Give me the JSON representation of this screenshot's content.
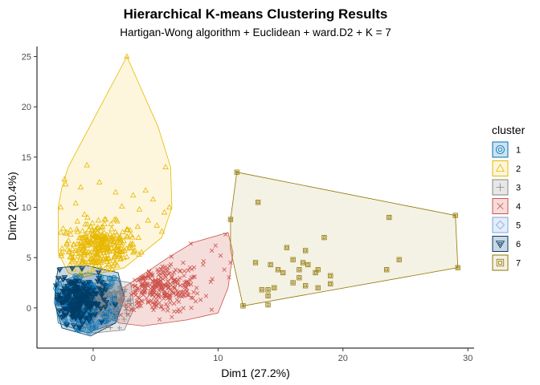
{
  "chart_data": {
    "type": "scatter",
    "title": "Hierarchical K-means Clustering Results",
    "subtitle": "Hartigan-Wong algorithm + Euclidean + ward.D2 + K = 7",
    "xlabel": "Dim1 (27.2%)",
    "ylabel": "Dim2 (20.4%)",
    "xlim": [
      -4.5,
      30.5
    ],
    "ylim": [
      -4.0,
      26.0
    ],
    "xticks": [
      0,
      10,
      20,
      30
    ],
    "yticks": [
      0,
      5,
      10,
      15,
      20,
      25
    ],
    "grid": false,
    "legend": {
      "title": "cluster",
      "placement": "right",
      "entries": [
        "1",
        "2",
        "3",
        "4",
        "5",
        "6",
        "7"
      ]
    },
    "series": [
      {
        "name": "1",
        "marker": "circle-in-circle",
        "color": "#0072B5",
        "fill": "#0072B5",
        "hull": [
          [
            -3.0,
            2.5
          ],
          [
            -0.5,
            3.5
          ],
          [
            2.0,
            3.0
          ],
          [
            2.5,
            1.0
          ],
          [
            1.8,
            -1.5
          ],
          [
            -0.5,
            -2.5
          ],
          [
            -2.8,
            -1.5
          ],
          [
            -3.0,
            0.5
          ]
        ],
        "center": [
          -0.5,
          0.5
        ],
        "spread": [
          1.3,
          1.2
        ],
        "count": 260
      },
      {
        "name": "2",
        "marker": "triangle",
        "color": "#E7B800",
        "fill": "#F5D34E",
        "hull": [
          [
            2.7,
            25.0
          ],
          [
            5.2,
            18.0
          ],
          [
            6.2,
            14.0
          ],
          [
            6.3,
            10.0
          ],
          [
            5.5,
            7.0
          ],
          [
            3.5,
            5.0
          ],
          [
            2.5,
            4.0
          ],
          [
            -1.0,
            3.0
          ],
          [
            -2.0,
            3.5
          ],
          [
            -2.8,
            5.5
          ],
          [
            -2.8,
            10.0
          ],
          [
            -2.5,
            12.0
          ],
          [
            -2.0,
            14.0
          ]
        ],
        "points": [
          [
            2.7,
            25.0
          ],
          [
            -0.5,
            14.2
          ],
          [
            -2.3,
            12.8
          ],
          [
            -2.2,
            12.3
          ],
          [
            5.8,
            14.0
          ],
          [
            -1.0,
            12.0
          ],
          [
            0.5,
            12.5
          ],
          [
            1.8,
            11.5
          ],
          [
            3.2,
            11.2
          ],
          [
            4.2,
            11.7
          ],
          [
            4.8,
            10.8
          ],
          [
            6.1,
            10.0
          ],
          [
            5.7,
            9.5
          ],
          [
            -2.6,
            10.0
          ],
          [
            -1.4,
            10.4
          ],
          [
            2.3,
            10.1
          ],
          [
            3.7,
            9.8
          ],
          [
            -0.7,
            9.3
          ],
          [
            1.0,
            8.8
          ],
          [
            4.4,
            8.7
          ],
          [
            5.1,
            8.2
          ],
          [
            5.5,
            7.6
          ],
          [
            -2.4,
            7.9
          ]
        ],
        "center": [
          0.5,
          6.0
        ],
        "spread": [
          1.5,
          1.2
        ],
        "count": 320
      },
      {
        "name": "3",
        "marker": "plus",
        "color": "#868686",
        "fill": "#868686",
        "hull": [
          [
            -1.0,
            2.2
          ],
          [
            1.5,
            2.8
          ],
          [
            3.0,
            2.5
          ],
          [
            3.3,
            0.0
          ],
          [
            2.5,
            -2.2
          ],
          [
            0.0,
            -2.5
          ],
          [
            -1.5,
            -1.0
          ]
        ],
        "center": [
          1.0,
          0.5
        ],
        "spread": [
          1.0,
          1.0
        ],
        "count": 150
      },
      {
        "name": "4",
        "marker": "cross",
        "color": "#CD534C",
        "fill": "#CD534C",
        "hull": [
          [
            1.8,
            1.5
          ],
          [
            6.0,
            5.0
          ],
          [
            8.0,
            6.5
          ],
          [
            10.8,
            7.5
          ],
          [
            11.2,
            5.5
          ],
          [
            10.8,
            2.0
          ],
          [
            10.0,
            -0.5
          ],
          [
            7.5,
            -1.2
          ],
          [
            4.0,
            -1.8
          ],
          [
            2.0,
            -1.5
          ]
        ],
        "points": [
          [
            10.6,
            7.3
          ],
          [
            9.8,
            6.2
          ],
          [
            10.2,
            5.2
          ],
          [
            9.5,
            5.7
          ],
          [
            10.5,
            3.8
          ],
          [
            7.8,
            6.4
          ],
          [
            8.8,
            4.3
          ],
          [
            11.0,
            4.5
          ]
        ],
        "center": [
          5.2,
          2.0
        ],
        "spread": [
          1.8,
          1.3
        ],
        "count": 300
      },
      {
        "name": "5",
        "marker": "diamond",
        "color": "#7AA6DC",
        "fill": "#7AA6DC",
        "hull": [
          [
            -2.5,
            1.5
          ],
          [
            0.0,
            2.2
          ],
          [
            1.5,
            1.5
          ],
          [
            1.8,
            -1.0
          ],
          [
            0.0,
            -2.2
          ],
          [
            -2.2,
            -1.5
          ]
        ],
        "center": [
          -0.4,
          0.0
        ],
        "spread": [
          1.0,
          0.9
        ],
        "count": 120
      },
      {
        "name": "6",
        "marker": "triangle-down-in-triangle",
        "color": "#003C67",
        "fill": "#003C67",
        "hull": [
          [
            -2.8,
            4.0
          ],
          [
            -0.5,
            4.2
          ],
          [
            2.0,
            3.5
          ],
          [
            2.5,
            1.0
          ],
          [
            1.8,
            -1.5
          ],
          [
            -0.2,
            -2.8
          ],
          [
            -2.5,
            -2.0
          ],
          [
            -3.1,
            0.5
          ],
          [
            -3.0,
            2.5
          ]
        ],
        "center": [
          -1.2,
          0.8
        ],
        "spread": [
          1.0,
          1.2
        ],
        "count": 200
      },
      {
        "name": "7",
        "marker": "square-in-square",
        "color": "#8F7700",
        "fill": "#C9BB7C",
        "hull": [
          [
            11.5,
            13.5
          ],
          [
            29.0,
            9.2
          ],
          [
            29.2,
            4.0
          ],
          [
            12.0,
            0.2
          ],
          [
            11.0,
            5.8
          ],
          [
            11.0,
            8.8
          ]
        ],
        "points": [
          [
            11.5,
            13.5
          ],
          [
            13.2,
            10.5
          ],
          [
            11.0,
            8.8
          ],
          [
            23.7,
            9.0
          ],
          [
            29.0,
            9.2
          ],
          [
            18.5,
            7.0
          ],
          [
            17.0,
            5.7
          ],
          [
            15.5,
            6.0
          ],
          [
            16.0,
            4.8
          ],
          [
            14.2,
            4.3
          ],
          [
            14.8,
            3.8
          ],
          [
            16.8,
            4.5
          ],
          [
            17.2,
            4.3
          ],
          [
            17.8,
            3.5
          ],
          [
            16.5,
            3.0
          ],
          [
            16.0,
            2.5
          ],
          [
            18.0,
            3.8
          ],
          [
            19.0,
            3.2
          ],
          [
            19.0,
            2.4
          ],
          [
            17.0,
            2.2
          ],
          [
            18.0,
            2.0
          ],
          [
            14.5,
            2.0
          ],
          [
            14.0,
            1.8
          ],
          [
            13.5,
            1.8
          ],
          [
            24.5,
            4.8
          ],
          [
            23.5,
            3.8
          ],
          [
            29.2,
            4.0
          ],
          [
            15.2,
            3.5
          ],
          [
            14.0,
            1.2
          ],
          [
            12.0,
            0.2
          ],
          [
            14.0,
            0.3
          ],
          [
            13.0,
            4.5
          ],
          [
            16.5,
            3.8
          ]
        ]
      }
    ]
  }
}
